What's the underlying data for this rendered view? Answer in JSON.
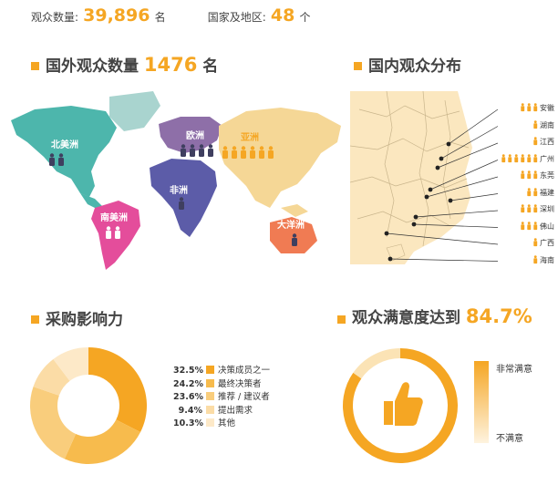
{
  "stats": {
    "visitors_label": "观众数量:",
    "visitors_value": "39,896",
    "visitors_unit": "名",
    "regions_label": "国家及地区:",
    "regions_value": "48",
    "regions_unit": "个"
  },
  "foreign": {
    "title": "国外观众数量",
    "value": "1476",
    "unit": "名",
    "regions": [
      {
        "label": "北美洲",
        "color": "#4db6ac",
        "people": 2
      },
      {
        "label": "欧洲",
        "color": "#8e6fa8",
        "people": 4
      },
      {
        "label": "亚洲",
        "color": "#f5a623",
        "people": 6
      },
      {
        "label": "非洲",
        "color": "#5c5ca8",
        "people": 1
      },
      {
        "label": "南美洲",
        "color": "#e44d9b",
        "people": 2
      },
      {
        "label": "大洋洲",
        "color": "#f07b53",
        "people": 1
      }
    ]
  },
  "domestic": {
    "title": "国内观众分布",
    "provinces": [
      {
        "name": "安徽",
        "icons": 3
      },
      {
        "name": "湖南",
        "icons": 1
      },
      {
        "name": "江西",
        "icons": 1
      },
      {
        "name": "广州",
        "icons": 6
      },
      {
        "name": "东莞",
        "icons": 3
      },
      {
        "name": "福建",
        "icons": 2
      },
      {
        "name": "深圳",
        "icons": 3
      },
      {
        "name": "佛山",
        "icons": 3
      },
      {
        "name": "广西",
        "icons": 1
      },
      {
        "name": "海南",
        "icons": 1
      }
    ]
  },
  "purchase": {
    "title": "采购影响力"
  },
  "satisfaction": {
    "title": "观众满意度达到",
    "value": "84.7%",
    "scale_high": "非常满意",
    "scale_low": "不满意"
  },
  "chart_data": [
    {
      "type": "pie",
      "title": "采购影响力",
      "categories": [
        "决策成员之一",
        "最终决策者",
        "推荐 / 建议者",
        "提出需求",
        "其他"
      ],
      "values": [
        32.5,
        24.2,
        23.6,
        9.4,
        10.3
      ],
      "labels": [
        "32.5%",
        "24.2%",
        "23.6%",
        "9.4%",
        "10.3%"
      ],
      "colors": [
        "#f5a623",
        "#f7bb4d",
        "#f9cd7c",
        "#fbdca6",
        "#fde9c8"
      ]
    },
    {
      "type": "pie",
      "title": "观众满意度达到",
      "categories": [
        "满意",
        "其他"
      ],
      "values": [
        84.7,
        15.3
      ],
      "colors": [
        "#f5a623",
        "#fbe3b5"
      ]
    }
  ]
}
